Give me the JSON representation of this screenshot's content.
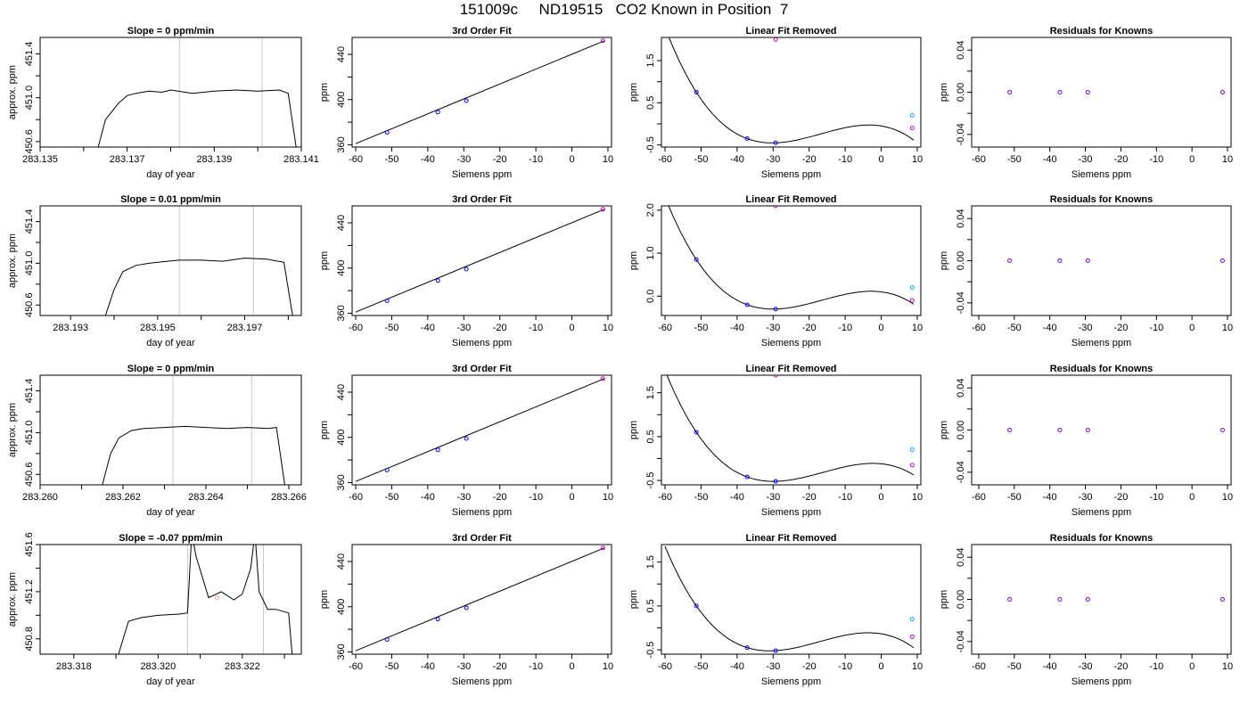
{
  "page": {
    "title": "151009c     ND19515   CO2 Known in Position  7"
  },
  "chart_data": [
    {
      "type": "line",
      "row": 1,
      "col": 1,
      "title": "Slope =  0  ppm/min",
      "xlabel": "day of year",
      "ylabel": "approx. ppm",
      "xlim": [
        283.135,
        283.141
      ],
      "ylim": [
        450.55,
        451.55
      ],
      "xticks": [
        283.135,
        283.136,
        283.137,
        283.138,
        283.139,
        283.14,
        283.141
      ],
      "xtick_labels": [
        "283.135",
        "",
        "283.137",
        "",
        "283.139",
        "",
        "283.141"
      ],
      "yticks": [
        450.6,
        450.8,
        451.0,
        451.2,
        451.4
      ],
      "ytick_labels": [
        "450.6",
        "",
        "451.0",
        "",
        "451.4"
      ],
      "vlines": [
        283.1382,
        283.1401
      ],
      "x": [
        283.1363,
        283.1365,
        283.1368,
        283.137,
        283.1372,
        283.1375,
        283.1378,
        283.138,
        283.1385,
        283.139,
        283.1395,
        283.14,
        283.1405,
        283.1407,
        283.1409
      ],
      "y": [
        450.5,
        450.8,
        450.95,
        451.02,
        451.04,
        451.06,
        451.05,
        451.07,
        451.04,
        451.06,
        451.07,
        451.06,
        451.07,
        451.04,
        450.5
      ]
    },
    {
      "type": "scatter",
      "row": 1,
      "col": 2,
      "title": "3rd Order Fit",
      "xlabel": "Siemens ppm",
      "ylabel": "ppm",
      "xlim": [
        -61,
        11
      ],
      "ylim": [
        358,
        455
      ],
      "xticks": [
        -60,
        -50,
        -40,
        -30,
        -20,
        -10,
        0,
        10
      ],
      "xtick_labels": [
        "-60",
        "-50",
        "-40",
        "-30",
        "-20",
        "-10",
        "0",
        "10"
      ],
      "yticks": [
        360,
        380,
        400,
        420,
        440
      ],
      "ytick_labels": [
        "360",
        "",
        "400",
        "",
        "440"
      ],
      "curve": {
        "x": [
          -60,
          9
        ],
        "y": [
          361,
          452
        ]
      },
      "points": {
        "x": [
          -51.3,
          -37.2,
          -29.3,
          8.6
        ],
        "y": [
          371,
          389,
          399,
          452
        ]
      },
      "point_colors": [
        "#0000ff",
        "#0000ff",
        "#0000ff",
        "#cc00cc"
      ]
    },
    {
      "type": "scatter",
      "row": 1,
      "col": 3,
      "title": "Linear Fit Removed",
      "xlabel": "Siemens ppm",
      "ylabel": "ppm",
      "xlim": [
        -61,
        11
      ],
      "ylim": [
        -0.55,
        2.05
      ],
      "xticks": [
        -60,
        -50,
        -40,
        -30,
        -20,
        -10,
        0,
        10
      ],
      "xtick_labels": [
        "-60",
        "-50",
        "-40",
        "-30",
        "-20",
        "-10",
        "0",
        "10"
      ],
      "yticks": [
        -0.5,
        0,
        0.5,
        1.0,
        1.5
      ],
      "ytick_labels": [
        "-0.5",
        "",
        "0.5",
        "",
        "1.5"
      ],
      "curve_poly": [
        0.001,
        0.0,
        0.0,
        0.0
      ],
      "points": {
        "x": [
          -51.3,
          -37.2,
          -29.3,
          -29.3,
          8.6,
          8.6
        ],
        "y": [
          0.75,
          -0.35,
          -0.45,
          2.0,
          0.2,
          -0.1
        ]
      },
      "point_colors": [
        "#0000ff",
        "#0000ff",
        "#0000ff",
        "#cc00cc",
        "#00aaff",
        "#cc00cc"
      ]
    },
    {
      "type": "scatter",
      "row": 1,
      "col": 4,
      "title": "Residuals for Knowns",
      "xlabel": "Siemens ppm",
      "ylabel": "ppm",
      "xlim": [
        -62,
        11
      ],
      "ylim": [
        -0.052,
        0.052
      ],
      "xticks": [
        -60,
        -50,
        -40,
        -30,
        -20,
        -10,
        0,
        10
      ],
      "xtick_labels": [
        "-60",
        "-50",
        "-40",
        "-30",
        "-20",
        "-10",
        "0",
        "10"
      ],
      "yticks": [
        -0.04,
        -0.02,
        0.0,
        0.02,
        0.04
      ],
      "ytick_labels": [
        "-0.04",
        "",
        "0.00",
        "",
        "0.04"
      ],
      "points": {
        "x": [
          -51.3,
          -37.2,
          -29.3,
          8.6
        ],
        "y": [
          0,
          0,
          0,
          0
        ]
      },
      "point_colors": [
        "#7700ee",
        "#7700ee",
        "#7700ee",
        "#7700ee"
      ]
    },
    {
      "type": "line",
      "row": 2,
      "col": 1,
      "title": "Slope =  0.01  ppm/min",
      "xlabel": "day of year",
      "ylabel": "approx. ppm",
      "xlim": [
        283.1923,
        283.1983
      ],
      "ylim": [
        450.5,
        451.55
      ],
      "xticks": [
        283.192,
        283.193,
        283.194,
        283.195,
        283.196,
        283.197,
        283.198
      ],
      "xtick_labels": [
        "",
        "283.193",
        "",
        "283.195",
        "",
        "283.197",
        ""
      ],
      "yticks": [
        450.6,
        450.8,
        451.0,
        451.2,
        451.4
      ],
      "ytick_labels": [
        "450.6",
        "",
        "451.0",
        "",
        "451.4"
      ],
      "vlines": [
        283.1955,
        283.1972
      ],
      "x": [
        283.1938,
        283.194,
        283.1942,
        283.1945,
        283.1948,
        283.195,
        283.1955,
        283.196,
        283.1965,
        283.197,
        283.1975,
        283.1979,
        283.1981
      ],
      "y": [
        450.5,
        450.75,
        450.92,
        450.98,
        451.0,
        451.01,
        451.03,
        451.03,
        451.02,
        451.05,
        451.04,
        451.01,
        450.5
      ]
    },
    {
      "type": "scatter",
      "row": 2,
      "col": 2,
      "title": "3rd Order Fit",
      "xlabel": "Siemens ppm",
      "ylabel": "ppm",
      "xlim": [
        -61,
        11
      ],
      "ylim": [
        358,
        455
      ],
      "xticks": [
        -60,
        -50,
        -40,
        -30,
        -20,
        -10,
        0,
        10
      ],
      "xtick_labels": [
        "-60",
        "-50",
        "-40",
        "-30",
        "-20",
        "-10",
        "0",
        "10"
      ],
      "yticks": [
        360,
        380,
        400,
        420,
        440
      ],
      "ytick_labels": [
        "360",
        "",
        "400",
        "",
        "440"
      ],
      "curve": {
        "x": [
          -60,
          9
        ],
        "y": [
          361,
          452
        ]
      },
      "points": {
        "x": [
          -51.3,
          -37.2,
          -29.3,
          8.6
        ],
        "y": [
          371,
          389,
          399,
          452
        ]
      },
      "point_colors": [
        "#0000ff",
        "#0000ff",
        "#0000ff",
        "#cc00cc"
      ]
    },
    {
      "type": "scatter",
      "row": 2,
      "col": 3,
      "title": "Linear Fit Removed",
      "xlabel": "Siemens ppm",
      "ylabel": "ppm",
      "xlim": [
        -61,
        11
      ],
      "ylim": [
        -0.45,
        2.1
      ],
      "xticks": [
        -60,
        -50,
        -40,
        -30,
        -20,
        -10,
        0,
        10
      ],
      "xtick_labels": [
        "-60",
        "-50",
        "-40",
        "-30",
        "-20",
        "-10",
        "0",
        "10"
      ],
      "yticks": [
        0.0,
        1.0,
        2.0
      ],
      "ytick_labels": [
        "0.0",
        "1.0",
        "2.0"
      ],
      "curve_poly": [
        0.001,
        0.0,
        0.0,
        0.0
      ],
      "points": {
        "x": [
          -51.3,
          -37.2,
          -29.3,
          -29.3,
          8.6,
          8.6
        ],
        "y": [
          0.85,
          -0.2,
          -0.3,
          2.1,
          0.2,
          -0.1
        ]
      },
      "point_colors": [
        "#0000ff",
        "#0000ff",
        "#0000ff",
        "#cc00cc",
        "#00aaff",
        "#cc00cc"
      ]
    },
    {
      "type": "scatter",
      "row": 2,
      "col": 4,
      "title": "Residuals for Knowns",
      "xlabel": "Siemens ppm",
      "ylabel": "ppm",
      "xlim": [
        -62,
        11
      ],
      "ylim": [
        -0.052,
        0.052
      ],
      "xticks": [
        -60,
        -50,
        -40,
        -30,
        -20,
        -10,
        0,
        10
      ],
      "xtick_labels": [
        "-60",
        "-50",
        "-40",
        "-30",
        "-20",
        "-10",
        "0",
        "10"
      ],
      "yticks": [
        -0.04,
        -0.02,
        0.0,
        0.02,
        0.04
      ],
      "ytick_labels": [
        "-0.04",
        "",
        "0.00",
        "",
        "0.04"
      ],
      "points": {
        "x": [
          -51.3,
          -37.2,
          -29.3,
          8.6
        ],
        "y": [
          0,
          0,
          0,
          0
        ]
      },
      "point_colors": [
        "#7700ee",
        "#7700ee",
        "#7700ee",
        "#7700ee"
      ]
    },
    {
      "type": "line",
      "row": 3,
      "col": 1,
      "title": "Slope =  0  ppm/min",
      "xlabel": "day of year",
      "ylabel": "approx. ppm",
      "xlim": [
        283.26,
        283.2663
      ],
      "ylim": [
        450.5,
        451.55
      ],
      "xticks": [
        283.26,
        283.261,
        283.262,
        283.263,
        283.264,
        283.265,
        283.266
      ],
      "xtick_labels": [
        "283.260",
        "",
        "283.262",
        "",
        "283.264",
        "",
        "283.266"
      ],
      "yticks": [
        450.6,
        450.8,
        451.0,
        451.2,
        451.4
      ],
      "ytick_labels": [
        "450.6",
        "",
        "451.0",
        "",
        "451.4"
      ],
      "vlines": [
        283.2632,
        283.2651
      ],
      "x": [
        283.2615,
        283.2617,
        283.2619,
        283.2622,
        283.2625,
        283.263,
        283.2635,
        283.264,
        283.2645,
        283.265,
        283.2655,
        283.2657,
        283.2659
      ],
      "y": [
        450.5,
        450.8,
        450.95,
        451.02,
        451.04,
        451.05,
        451.06,
        451.05,
        451.04,
        451.05,
        451.04,
        451.05,
        450.5
      ]
    },
    {
      "type": "scatter",
      "row": 3,
      "col": 2,
      "title": "3rd Order Fit",
      "xlabel": "Siemens ppm",
      "ylabel": "ppm",
      "xlim": [
        -61,
        11
      ],
      "ylim": [
        358,
        455
      ],
      "xticks": [
        -60,
        -50,
        -40,
        -30,
        -20,
        -10,
        0,
        10
      ],
      "xtick_labels": [
        "-60",
        "-50",
        "-40",
        "-30",
        "-20",
        "-10",
        "0",
        "10"
      ],
      "yticks": [
        360,
        380,
        400,
        420,
        440
      ],
      "ytick_labels": [
        "360",
        "",
        "400",
        "",
        "440"
      ],
      "curve": {
        "x": [
          -60,
          9
        ],
        "y": [
          361,
          452
        ]
      },
      "points": {
        "x": [
          -51.3,
          -37.2,
          -29.3,
          8.6
        ],
        "y": [
          371,
          389,
          399,
          452
        ]
      },
      "point_colors": [
        "#0000ff",
        "#0000ff",
        "#0000ff",
        "#cc00cc"
      ]
    },
    {
      "type": "scatter",
      "row": 3,
      "col": 3,
      "title": "Linear Fit Removed",
      "xlabel": "Siemens ppm",
      "ylabel": "ppm",
      "xlim": [
        -61,
        11
      ],
      "ylim": [
        -0.6,
        1.9
      ],
      "xticks": [
        -60,
        -50,
        -40,
        -30,
        -20,
        -10,
        0,
        10
      ],
      "xtick_labels": [
        "-60",
        "-50",
        "-40",
        "-30",
        "-20",
        "-10",
        "0",
        "10"
      ],
      "yticks": [
        -0.5,
        0,
        0.5,
        1.0,
        1.5
      ],
      "ytick_labels": [
        "-0.5",
        "",
        "0.5",
        "",
        "1.5"
      ],
      "curve_poly": [
        0.001,
        0.0,
        0.0,
        0.0
      ],
      "points": {
        "x": [
          -51.3,
          -37.2,
          -29.3,
          -29.3,
          8.6,
          8.6
        ],
        "y": [
          0.6,
          -0.42,
          -0.52,
          1.9,
          0.2,
          -0.15
        ]
      },
      "point_colors": [
        "#0000ff",
        "#0000ff",
        "#0000ff",
        "#cc00cc",
        "#00aaff",
        "#cc00cc"
      ]
    },
    {
      "type": "scatter",
      "row": 3,
      "col": 4,
      "title": "Residuals for Knowns",
      "xlabel": "Siemens ppm",
      "ylabel": "ppm",
      "xlim": [
        -62,
        11
      ],
      "ylim": [
        -0.052,
        0.052
      ],
      "xticks": [
        -60,
        -50,
        -40,
        -30,
        -20,
        -10,
        0,
        10
      ],
      "xtick_labels": [
        "-60",
        "-50",
        "-40",
        "-30",
        "-20",
        "-10",
        "0",
        "10"
      ],
      "yticks": [
        -0.04,
        -0.02,
        0.0,
        0.02,
        0.04
      ],
      "ytick_labels": [
        "-0.04",
        "",
        "0.00",
        "",
        "0.04"
      ],
      "points": {
        "x": [
          -51.3,
          -37.2,
          -29.3,
          8.6
        ],
        "y": [
          0,
          0,
          0,
          0
        ]
      },
      "point_colors": [
        "#7700ee",
        "#7700ee",
        "#7700ee",
        "#7700ee"
      ]
    },
    {
      "type": "line",
      "row": 4,
      "col": 1,
      "title": "Slope =  -0.07  ppm/min",
      "xlabel": "day of year",
      "ylabel": "approx. ppm",
      "xlim": [
        283.3172,
        283.3234
      ],
      "ylim": [
        450.67,
        451.6
      ],
      "xticks": [
        283.318,
        283.319,
        283.32,
        283.321,
        283.322,
        283.323
      ],
      "xtick_labels": [
        "283.318",
        "",
        "283.320",
        "",
        "283.322",
        ""
      ],
      "yticks": [
        450.8,
        451.0,
        451.2,
        451.4,
        451.6
      ],
      "ytick_labels": [
        "450.8",
        "",
        "451.2",
        "",
        "451.6"
      ],
      "vlines": [
        283.3207,
        283.3225
      ],
      "x": [
        283.319,
        283.3193,
        283.3196,
        283.32,
        283.3205,
        283.3207,
        283.3208,
        283.3209,
        283.3212,
        283.3215,
        283.3218,
        283.322,
        283.3222,
        283.3223,
        283.3224,
        283.3226,
        283.3228,
        283.3231,
        283.3232
      ],
      "y": [
        450.6,
        450.95,
        450.98,
        451.0,
        451.01,
        451.02,
        451.7,
        451.5,
        451.15,
        451.2,
        451.13,
        451.18,
        451.4,
        451.7,
        451.2,
        451.05,
        451.05,
        451.02,
        450.6
      ],
      "extra_points": {
        "x": [
          283.3214
        ],
        "y": [
          451.15
        ]
      },
      "extra_point_color": "#ff9999"
    },
    {
      "type": "scatter",
      "row": 4,
      "col": 2,
      "title": "3rd Order Fit",
      "xlabel": "Siemens ppm",
      "ylabel": "ppm",
      "xlim": [
        -61,
        11
      ],
      "ylim": [
        358,
        455
      ],
      "xticks": [
        -60,
        -50,
        -40,
        -30,
        -20,
        -10,
        0,
        10
      ],
      "xtick_labels": [
        "-60",
        "-50",
        "-40",
        "-30",
        "-20",
        "-10",
        "0",
        "10"
      ],
      "yticks": [
        360,
        380,
        400,
        420,
        440
      ],
      "ytick_labels": [
        "360",
        "",
        "400",
        "",
        "440"
      ],
      "curve": {
        "x": [
          -60,
          9
        ],
        "y": [
          361,
          452
        ]
      },
      "points": {
        "x": [
          -51.3,
          -37.2,
          -29.3,
          8.6
        ],
        "y": [
          371,
          389,
          399,
          452
        ]
      },
      "point_colors": [
        "#0000ff",
        "#0000ff",
        "#0000ff",
        "#cc00cc"
      ]
    },
    {
      "type": "scatter",
      "row": 4,
      "col": 3,
      "title": "Linear Fit Removed",
      "xlabel": "Siemens ppm",
      "ylabel": "ppm",
      "xlim": [
        -61,
        11
      ],
      "ylim": [
        -0.6,
        1.9
      ],
      "xticks": [
        -60,
        -50,
        -40,
        -30,
        -20,
        -10,
        0,
        10
      ],
      "xtick_labels": [
        "-60",
        "-50",
        "-40",
        "-30",
        "-20",
        "-10",
        "0",
        "10"
      ],
      "yticks": [
        -0.5,
        0,
        0.5,
        1.0,
        1.5
      ],
      "ytick_labels": [
        "-0.5",
        "",
        "0.5",
        "",
        "1.5"
      ],
      "curve_poly": [
        0.001,
        0.0,
        0.0,
        0.0
      ],
      "points": {
        "x": [
          -51.3,
          -37.2,
          -29.3,
          8.6,
          8.6
        ],
        "y": [
          0.5,
          -0.45,
          -0.52,
          0.2,
          -0.2
        ]
      },
      "point_colors": [
        "#0000ff",
        "#0000ff",
        "#0000ff",
        "#00aaff",
        "#cc00cc"
      ]
    },
    {
      "type": "scatter",
      "row": 4,
      "col": 4,
      "title": "Residuals for Knowns",
      "xlabel": "Siemens ppm",
      "ylabel": "ppm",
      "xlim": [
        -62,
        11
      ],
      "ylim": [
        -0.052,
        0.052
      ],
      "xticks": [
        -60,
        -50,
        -40,
        -30,
        -20,
        -10,
        0,
        10
      ],
      "xtick_labels": [
        "-60",
        "-50",
        "-40",
        "-30",
        "-20",
        "-10",
        "0",
        "10"
      ],
      "yticks": [
        -0.04,
        -0.02,
        0.0,
        0.02,
        0.04
      ],
      "ytick_labels": [
        "-0.04",
        "",
        "0.00",
        "",
        "0.04"
      ],
      "points": {
        "x": [
          -51.3,
          -37.2,
          -29.3,
          8.6
        ],
        "y": [
          0,
          0,
          0,
          0
        ]
      },
      "point_colors": [
        "#7700ee",
        "#7700ee",
        "#7700ee",
        "#7700ee"
      ]
    }
  ]
}
